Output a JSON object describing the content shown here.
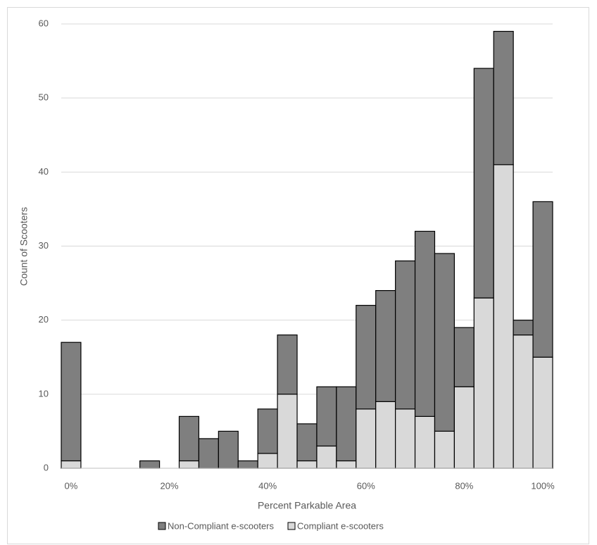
{
  "chart_data": {
    "type": "bar",
    "stacked": true,
    "x_label": "Percent Parkable Area",
    "y_label": "Count of Scooters",
    "categories": [
      "0%",
      null,
      null,
      null,
      null,
      "20%",
      null,
      null,
      null,
      null,
      "40%",
      null,
      null,
      null,
      null,
      "60%",
      null,
      null,
      null,
      null,
      "80%",
      null,
      null,
      null,
      "100%"
    ],
    "series": [
      {
        "name": "Compliant e-scooters",
        "color": "#d9d9d9",
        "values": [
          1,
          0,
          0,
          0,
          0,
          0,
          1,
          0,
          0,
          0,
          2,
          10,
          1,
          3,
          1,
          8,
          9,
          8,
          7,
          5,
          11,
          23,
          41,
          18,
          15
        ]
      },
      {
        "name": "Non-Compliant e-scooters",
        "color": "#7f7f7f",
        "values": [
          16,
          0,
          0,
          0,
          1,
          0,
          6,
          4,
          5,
          1,
          6,
          8,
          5,
          8,
          10,
          14,
          15,
          20,
          25,
          24,
          8,
          31,
          18,
          2,
          21
        ]
      }
    ],
    "legend_order": [
      1,
      0
    ],
    "ylim": [
      0,
      60
    ],
    "yticks": [
      0,
      10,
      20,
      30,
      40,
      50,
      60
    ],
    "grid": true
  }
}
